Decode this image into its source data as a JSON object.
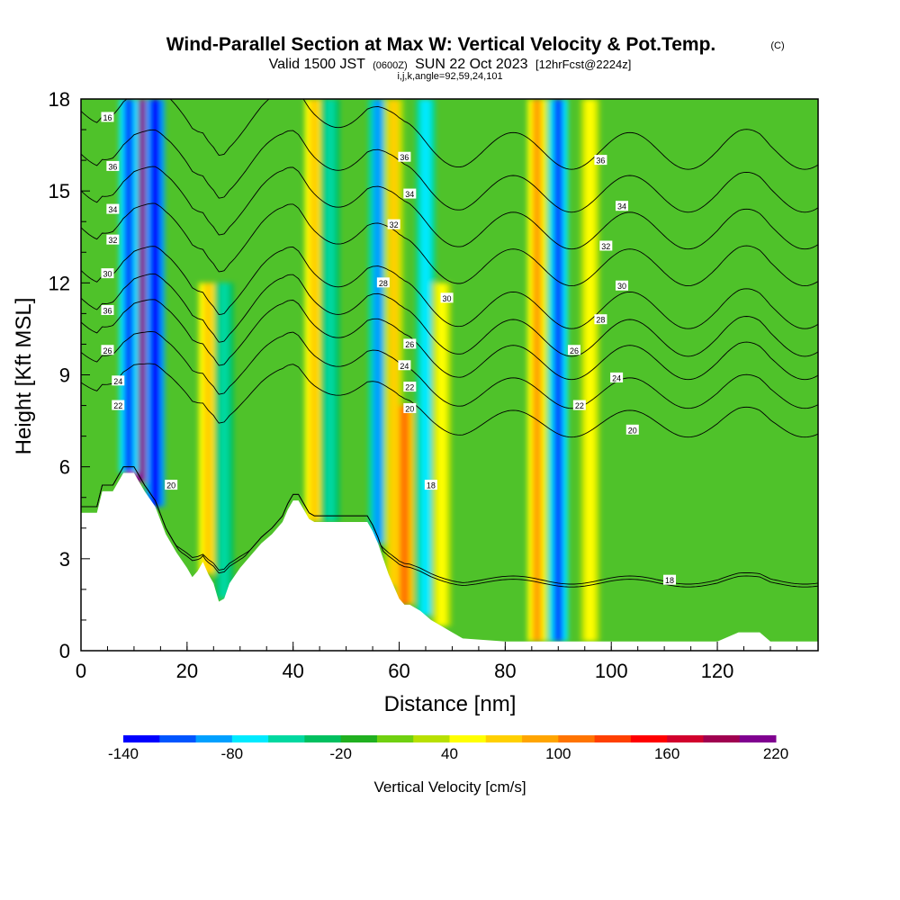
{
  "chart_data": {
    "type": "heatmap",
    "title": "Wind-Parallel Section at Max W: Vertical Velocity & Pot.Temp.",
    "title_mark": "(C)",
    "subtitle_main": "Valid 1500 JST",
    "subtitle_utc": "(0600Z)",
    "subtitle_date": "SUN 22 Oct 2023",
    "subtitle_fcst": "[12hrFcst@2224z]",
    "subtitle_indices": "i,j,k,angle=92,59,24,101",
    "xlabel": "Distance [nm]",
    "ylabel": "Height [Kft MSL]",
    "xlim": [
      0,
      139
    ],
    "ylim": [
      0,
      18
    ],
    "x_ticks": [
      0,
      20,
      40,
      60,
      80,
      100,
      120
    ],
    "y_ticks": [
      0,
      3,
      6,
      9,
      12,
      15,
      18
    ],
    "x_tick_labels": [
      "0",
      "20",
      "40",
      "60",
      "80",
      "100",
      "120"
    ],
    "y_tick_labels": [
      "0",
      "3",
      "6",
      "9",
      "12",
      "15",
      "18"
    ],
    "colorbar": {
      "label": "Vertical Velocity [cm/s]",
      "min": -140,
      "max": 220,
      "step": 20,
      "tick_values": [
        -140,
        -80,
        -20,
        40,
        100,
        160,
        220
      ],
      "tick_labels": [
        "-140",
        "-80",
        "-20",
        "40",
        "100",
        "160",
        "220"
      ],
      "colors": [
        "#0000ff",
        "#0055ff",
        "#00a0ff",
        "#00eaff",
        "#00d8a0",
        "#00c060",
        "#20b020",
        "#70d010",
        "#b8e000",
        "#ffff00",
        "#ffd000",
        "#ffa500",
        "#ff7400",
        "#ff4000",
        "#ff0000",
        "#d2002d",
        "#a00050",
        "#800090"
      ]
    },
    "velocity_features": [
      {
        "x": 11,
        "z_top": 18,
        "w": 200
      },
      {
        "x": 9,
        "z_top": 18,
        "w": -120
      },
      {
        "x": 14,
        "z_top": 18,
        "w": -140
      },
      {
        "x": 24,
        "z_top": 12,
        "w": 70
      },
      {
        "x": 27,
        "z_top": 12,
        "w": -60
      },
      {
        "x": 44,
        "z_top": 18,
        "w": 70
      },
      {
        "x": 47,
        "z_top": 18,
        "w": -60
      },
      {
        "x": 56,
        "z_top": 18,
        "w": -100
      },
      {
        "x": 59,
        "z_top": 18,
        "w": 60
      },
      {
        "x": 61,
        "z_top": 8,
        "w": 110
      },
      {
        "x": 65,
        "z_top": 18,
        "w": -80
      },
      {
        "x": 68,
        "z_top": 12,
        "w": 50
      },
      {
        "x": 86,
        "z_top": 18,
        "w": 90
      },
      {
        "x": 90,
        "z_top": 18,
        "w": -120
      },
      {
        "x": 96,
        "z_top": 18,
        "w": 40
      }
    ],
    "terrain": {
      "x": [
        0,
        3,
        4,
        6,
        7,
        8,
        10,
        11,
        12,
        14,
        16,
        18,
        20,
        21,
        22,
        23,
        24,
        25,
        26,
        27,
        28,
        30,
        32,
        34,
        36,
        38,
        39,
        40,
        41,
        42,
        43,
        44,
        46,
        48,
        50,
        52,
        54,
        55,
        56,
        57,
        58,
        59,
        60,
        61,
        62,
        64,
        66,
        68,
        70,
        72,
        80,
        90,
        100,
        110,
        120,
        124,
        128,
        130,
        139
      ],
      "z": [
        4.5,
        4.5,
        5.2,
        5.2,
        5.5,
        5.8,
        5.8,
        5.5,
        5.2,
        4.7,
        3.8,
        3.2,
        2.7,
        2.4,
        2.6,
        2.9,
        2.5,
        2.2,
        1.6,
        1.7,
        2.2,
        2.7,
        3.1,
        3.5,
        3.8,
        4.2,
        4.6,
        4.9,
        4.9,
        4.6,
        4.3,
        4.2,
        4.2,
        4.2,
        4.2,
        4.2,
        4.2,
        3.9,
        3.5,
        3.0,
        2.5,
        2.1,
        1.7,
        1.5,
        1.5,
        1.3,
        1.0,
        0.8,
        0.6,
        0.4,
        0.3,
        0.3,
        0.3,
        0.3,
        0.3,
        0.6,
        0.6,
        0.3,
        0.3
      ]
    },
    "isentropes": [
      {
        "level": 16,
        "base": 2.1,
        "label": "16",
        "label_x": 84
      },
      {
        "level": 18,
        "base": 2.2,
        "label": "18",
        "label_x": 94
      },
      {
        "level": 20,
        "base": 7.3,
        "label": "20",
        "label_x": 104
      },
      {
        "level": 22,
        "base": 8.3,
        "label": "22",
        "label_x": 36
      },
      {
        "level": 24,
        "base": 9.3,
        "label": "24",
        "label_x": 27
      },
      {
        "level": 26,
        "base": 10.1,
        "label": "26",
        "label_x": 27
      },
      {
        "level": 28,
        "base": 11.0,
        "label": "28",
        "label_x": 26
      },
      {
        "level": 30,
        "base": 12.4,
        "label": "30",
        "label_x": 35
      },
      {
        "level": 32,
        "base": 13.6,
        "label": "32",
        "label_x": 33
      },
      {
        "level": 34,
        "base": 14.8,
        "label": "34",
        "label_x": 38
      },
      {
        "level": 36,
        "base": 16.2,
        "label": "36",
        "label_x": 39
      }
    ],
    "extra_contour_labels": [
      {
        "x": 5,
        "z": 17.4,
        "text": "16"
      },
      {
        "x": 111,
        "z": 2.3,
        "text": "18"
      },
      {
        "x": 104,
        "z": 7.2,
        "text": "20"
      },
      {
        "x": 94,
        "z": 8.0,
        "text": "22"
      },
      {
        "x": 101,
        "z": 8.9,
        "text": "24"
      },
      {
        "x": 93,
        "z": 9.8,
        "text": "26"
      },
      {
        "x": 98,
        "z": 10.8,
        "text": "28"
      },
      {
        "x": 102,
        "z": 11.9,
        "text": "30"
      },
      {
        "x": 99,
        "z": 13.2,
        "text": "32"
      },
      {
        "x": 102,
        "z": 14.5,
        "text": "34"
      },
      {
        "x": 98,
        "z": 16.0,
        "text": "36"
      },
      {
        "x": 6,
        "z": 15.8,
        "text": "36"
      },
      {
        "x": 6,
        "z": 14.4,
        "text": "34"
      },
      {
        "x": 6,
        "z": 13.4,
        "text": "32"
      },
      {
        "x": 5,
        "z": 12.3,
        "text": "30"
      },
      {
        "x": 5,
        "z": 11.1,
        "text": "36"
      },
      {
        "x": 5,
        "z": 9.8,
        "text": "26"
      },
      {
        "x": 7,
        "z": 8.8,
        "text": "24"
      },
      {
        "x": 7,
        "z": 8.0,
        "text": "22"
      },
      {
        "x": 17,
        "z": 5.4,
        "text": "20"
      },
      {
        "x": 61,
        "z": 16.1,
        "text": "36"
      },
      {
        "x": 62,
        "z": 14.9,
        "text": "34"
      },
      {
        "x": 59,
        "z": 13.9,
        "text": "32"
      },
      {
        "x": 57,
        "z": 12.0,
        "text": "28"
      },
      {
        "x": 69,
        "z": 11.5,
        "text": "30"
      },
      {
        "x": 62,
        "z": 10.0,
        "text": "26"
      },
      {
        "x": 61,
        "z": 9.3,
        "text": "24"
      },
      {
        "x": 62,
        "z": 8.6,
        "text": "22"
      },
      {
        "x": 62,
        "z": 7.9,
        "text": "20"
      },
      {
        "x": 66,
        "z": 5.4,
        "text": "18"
      }
    ]
  }
}
